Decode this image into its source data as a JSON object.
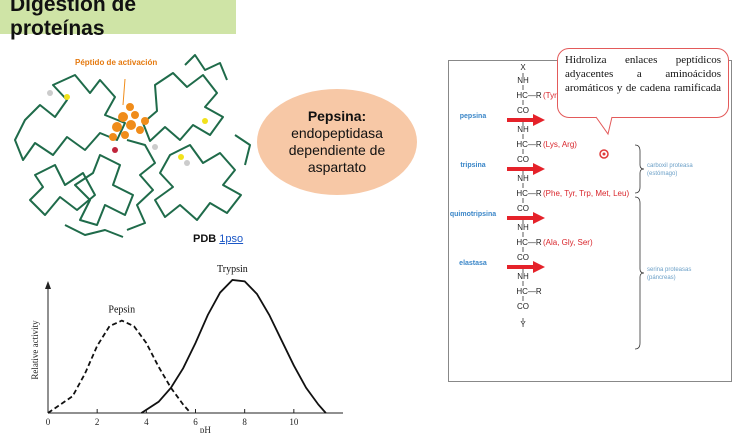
{
  "slide": {
    "title": "Digestión de proteínas"
  },
  "protein": {
    "annotation": "Péptido de activación",
    "pdb_label": "PDB",
    "pdb_link": "1pso"
  },
  "bubble": {
    "title": "Pepsina:",
    "line1": "endopeptidasa",
    "line2": "dependiente de",
    "line3": "aspartato"
  },
  "callout": {
    "text": "Hidroliza enlaces peptídicos adyacentes a aminoácidos aromáticos y de cadena ramificada"
  },
  "mechanism": {
    "top_label": "X",
    "bottom_label": "Y",
    "nh": "NH",
    "co": "CO",
    "hc_r": "HC—R",
    "residues": [
      "(Tyr, Phe, Leu)",
      "(Lys, Arg)",
      "(Phe, Tyr, Trp, Met, Leu)",
      "(Ala, Gly, Ser)",
      ""
    ],
    "enzymes": [
      "pepsina",
      "tripsina",
      "quimotripsina",
      "elastasa"
    ],
    "group_labels": [
      [
        "carboxil proteasa",
        "(estómago)"
      ],
      [
        "serina proteasas",
        "(páncreas)"
      ]
    ],
    "colors": {
      "arrow": "#e5222a",
      "enzyme": "#3a86c8",
      "residue": "#d9262c"
    }
  },
  "chart_data": {
    "type": "line",
    "title": "",
    "xlabel": "pH",
    "ylabel": "Relative activity",
    "xlim": [
      0,
      12
    ],
    "xticks": [
      0,
      2,
      4,
      6,
      8,
      10
    ],
    "series": [
      {
        "name": "Pepsin",
        "style": "dashed",
        "x": [
          0,
          1,
          1.5,
          2,
          2.5,
          3,
          3.5,
          4,
          4.5,
          5,
          5.5,
          5.8
        ],
        "y": [
          0.0,
          0.12,
          0.28,
          0.48,
          0.62,
          0.66,
          0.62,
          0.5,
          0.33,
          0.18,
          0.06,
          0.0
        ]
      },
      {
        "name": "Trypsin",
        "style": "solid",
        "x": [
          3.8,
          4.5,
          5,
          5.5,
          6,
          6.5,
          7,
          7.5,
          8,
          8.5,
          9,
          9.5,
          10,
          10.5,
          11,
          11.3
        ],
        "y": [
          0.0,
          0.08,
          0.18,
          0.32,
          0.5,
          0.7,
          0.86,
          0.95,
          0.94,
          0.85,
          0.7,
          0.52,
          0.34,
          0.18,
          0.06,
          0.0
        ]
      }
    ]
  }
}
